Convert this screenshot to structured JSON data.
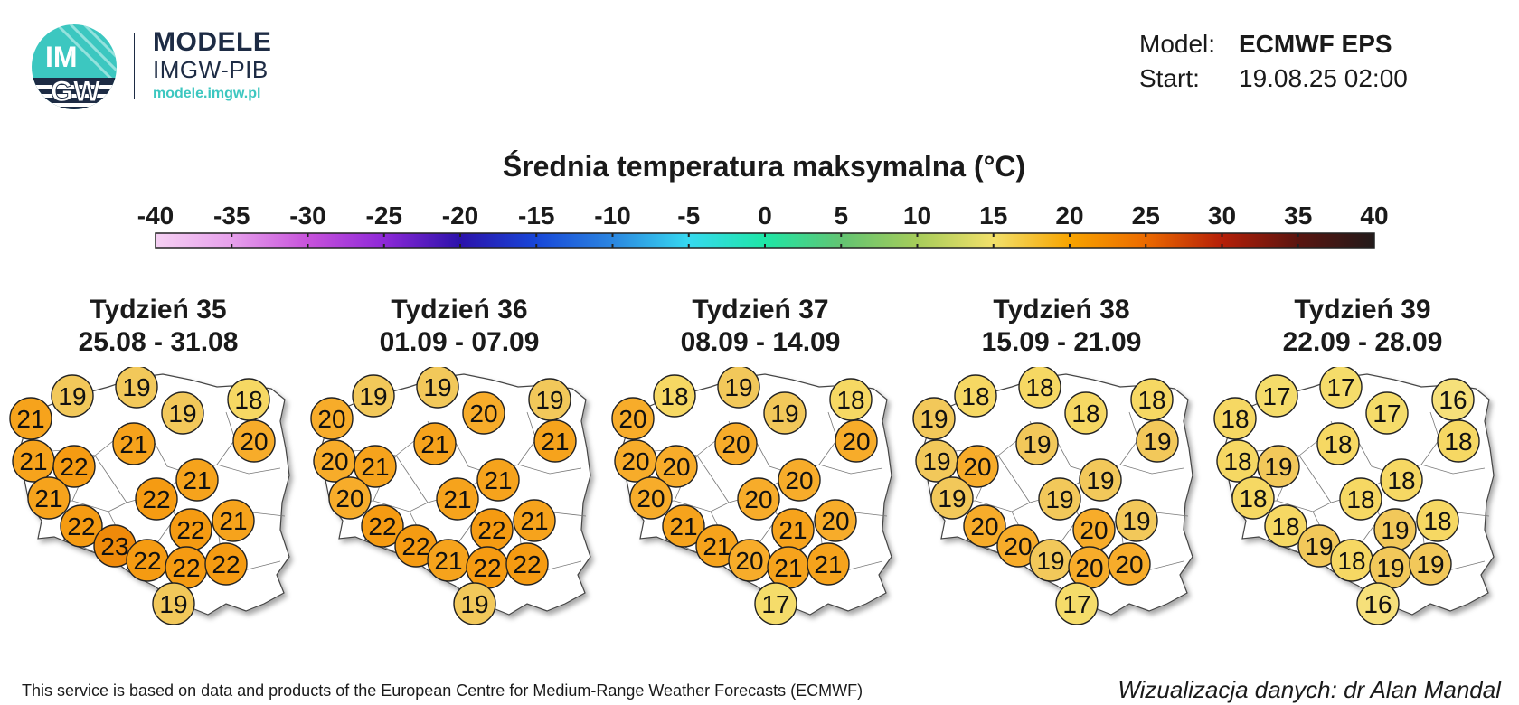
{
  "brand": {
    "logo_text_top": "IM",
    "logo_text_bottom": "GW",
    "title": "MODELE",
    "subtitle": "IMGW-PIB",
    "url": "modele.imgw.pl"
  },
  "meta": {
    "model_label": "Model:",
    "model_value": "ECMWF EPS",
    "start_label": "Start:",
    "start_value": "19.08.25 02:00"
  },
  "title": "Średnia temperatura maksymalna (°C)",
  "scale": {
    "ticks": [
      "-40",
      "-35",
      "-30",
      "-25",
      "-20",
      "-15",
      "-10",
      "-5",
      "0",
      "5",
      "10",
      "15",
      "20",
      "25",
      "30",
      "35",
      "40"
    ],
    "stops": [
      "#f5d0f2",
      "#e7a0ec",
      "#c752db",
      "#8e28d8",
      "#2b12aa",
      "#1847d8",
      "#2b86e0",
      "#36d9f0",
      "#1ee6a6",
      "#62c472",
      "#a6cc5a",
      "#f2e06a",
      "#f8a400",
      "#ec6a00",
      "#b51f08",
      "#5a1510",
      "#231a1a"
    ]
  },
  "colors": {
    "t16": "#f6e07a",
    "t17": "#f5dc6a",
    "t18": "#f6d863",
    "t19": "#f2c85a",
    "t20": "#f7ac2a",
    "t21": "#f6a31c",
    "t22": "#f59b12",
    "t23": "#ef8a0a"
  },
  "panels": [
    {
      "week": "Tydzień 35",
      "dates": "25.08 - 31.08",
      "values": [
        "19",
        "19",
        "18",
        "21",
        "19",
        "20",
        "21",
        "21",
        "22",
        "21",
        "21",
        "22",
        "22",
        "21",
        "22",
        "23",
        "22",
        "22",
        "22",
        "19"
      ]
    },
    {
      "week": "Tydzień 36",
      "dates": "01.09 - 07.09",
      "values": [
        "19",
        "19",
        "19",
        "20",
        "20",
        "21",
        "20",
        "21",
        "21",
        "21",
        "20",
        "21",
        "22",
        "21",
        "22",
        "22",
        "21",
        "22",
        "22",
        "19"
      ]
    },
    {
      "week": "Tydzień 37",
      "dates": "08.09 - 14.09",
      "values": [
        "18",
        "19",
        "18",
        "20",
        "19",
        "20",
        "20",
        "20",
        "20",
        "20",
        "20",
        "20",
        "21",
        "20",
        "21",
        "21",
        "20",
        "21",
        "21",
        "17"
      ]
    },
    {
      "week": "Tydzień 38",
      "dates": "15.09 - 21.09",
      "values": [
        "18",
        "18",
        "18",
        "19",
        "18",
        "19",
        "19",
        "19",
        "20",
        "19",
        "19",
        "19",
        "20",
        "19",
        "20",
        "20",
        "19",
        "20",
        "20",
        "17"
      ]
    },
    {
      "week": "Tydzień 39",
      "dates": "22.09 - 28.09",
      "values": [
        "17",
        "17",
        "16",
        "18",
        "17",
        "18",
        "18",
        "18",
        "19",
        "18",
        "18",
        "18",
        "19",
        "18",
        "18",
        "19",
        "18",
        "19",
        "19",
        "16"
      ]
    }
  ],
  "footer": {
    "left": "This service is based on data and products of the European Centre for Medium-Range Weather Forecasts (ECMWF)",
    "right": "Wizualizacja danych: dr Alan Mandal"
  }
}
